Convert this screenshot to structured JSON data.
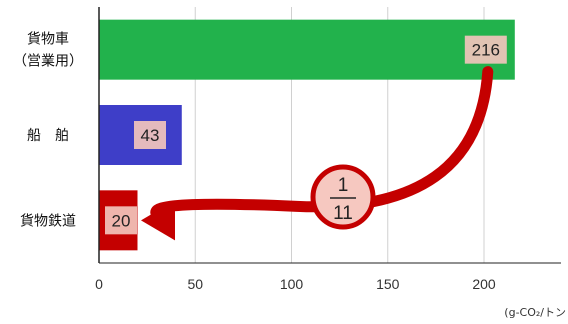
{
  "chart_data": {
    "type": "bar",
    "orientation": "horizontal",
    "categories": [
      {
        "lines": [
          "貨物車",
          "（営業用）"
        ],
        "value": 216,
        "color": "#22b24c"
      },
      {
        "lines": [
          "船　舶"
        ],
        "value": 43,
        "color": "#3e3ec8"
      },
      {
        "lines": [
          "貨物鉄道"
        ],
        "value": 20,
        "color": "#c40000"
      }
    ],
    "xlim": [
      0,
      240
    ],
    "xticks": [
      0,
      50,
      100,
      150,
      200
    ],
    "unit": "(g-CO₂/トン",
    "grid": true,
    "annotation": {
      "numerator": "1",
      "denominator": "11"
    },
    "colors": {
      "arrow": "#c40000",
      "circle_fill": "#f6c8c0",
      "value_box": "#f2c4bc",
      "grid": "#d0d0d0",
      "axis": "#222222"
    }
  }
}
